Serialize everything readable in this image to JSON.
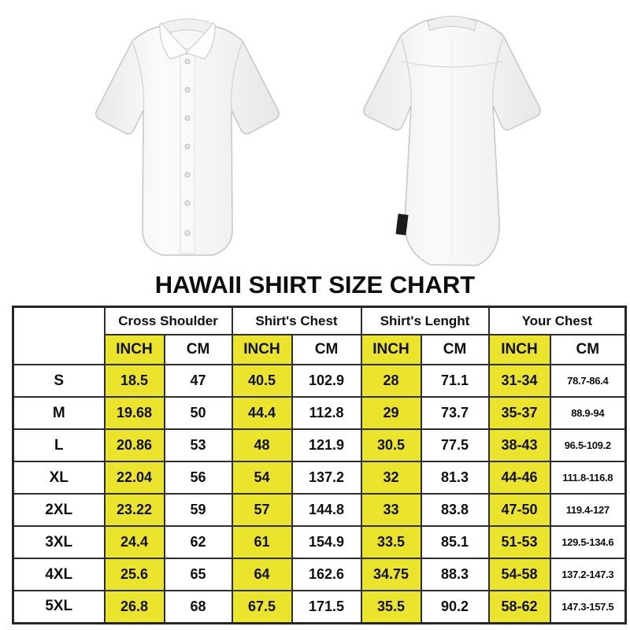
{
  "title": "HAWAII SHIRT SIZE CHART",
  "colors": {
    "highlight_yellow": "#ebe42c",
    "table_border": "#2e2e2e",
    "text": "#101010",
    "background": "#ffffff"
  },
  "chart_data": {
    "type": "table",
    "title": "HAWAII SHIRT SIZE CHART",
    "column_groups": [
      "Cross Shoulder",
      "Shirt's Chest",
      "Shirt's Lenght",
      "Your Chest"
    ],
    "units_row": [
      "INCH",
      "CM",
      "INCH",
      "CM",
      "INCH",
      "CM",
      "INCH",
      "CM"
    ],
    "corner_label": "",
    "rows": [
      {
        "size": "S",
        "cells": [
          "18.5",
          "47",
          "40.5",
          "102.9",
          "28",
          "71.1",
          "31-34",
          "78.7-86.4"
        ]
      },
      {
        "size": "M",
        "cells": [
          "19.68",
          "50",
          "44.4",
          "112.8",
          "29",
          "73.7",
          "35-37",
          "88.9-94"
        ]
      },
      {
        "size": "L",
        "cells": [
          "20.86",
          "53",
          "48",
          "121.9",
          "30.5",
          "77.5",
          "38-43",
          "96.5-109.2"
        ]
      },
      {
        "size": "XL",
        "cells": [
          "22.04",
          "56",
          "54",
          "137.2",
          "32",
          "81.3",
          "44-46",
          "111.8-116.8"
        ]
      },
      {
        "size": "2XL",
        "cells": [
          "23.22",
          "59",
          "57",
          "144.8",
          "33",
          "83.8",
          "47-50",
          "119.4-127"
        ]
      },
      {
        "size": "3XL",
        "cells": [
          "24.4",
          "62",
          "61",
          "154.9",
          "33.5",
          "85.1",
          "51-53",
          "129.5-134.6"
        ]
      },
      {
        "size": "4XL",
        "cells": [
          "25.6",
          "65",
          "64",
          "162.6",
          "34.75",
          "88.3",
          "54-58",
          "137.2-147.3"
        ]
      },
      {
        "size": "5XL",
        "cells": [
          "26.8",
          "68",
          "67.5",
          "171.5",
          "35.5",
          "90.2",
          "58-62",
          "147.3-157.5"
        ]
      }
    ]
  }
}
